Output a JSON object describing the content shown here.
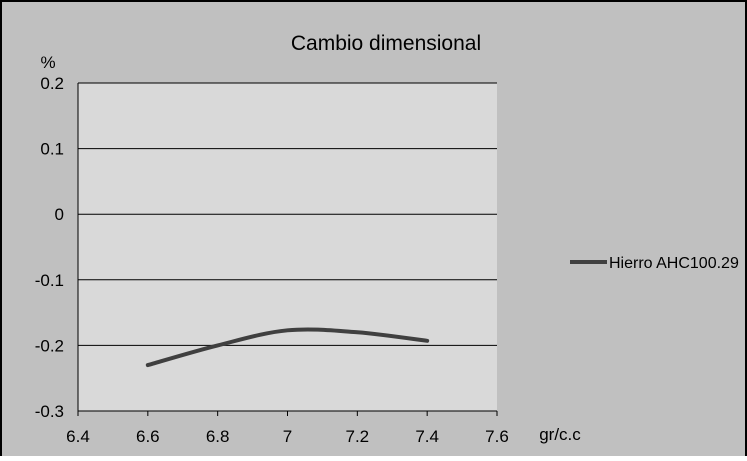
{
  "chart_data": {
    "type": "line",
    "title": "Cambio dimensional",
    "ylabel": "%",
    "xlabel": "gr/c.c",
    "xlim": [
      6.4,
      7.6
    ],
    "ylim": [
      -0.3,
      0.2
    ],
    "xticks": [
      "6.4",
      "6.6",
      "6.8",
      "7",
      "7.2",
      "7.4",
      "7.6"
    ],
    "yticks": [
      "0.2",
      "0.1",
      "0",
      "-0.1",
      "-0.2",
      "-0.3"
    ],
    "grid": true,
    "legend_position": "right",
    "series": [
      {
        "name": "Hierro AHC100.29",
        "color": "#404040",
        "x": [
          6.6,
          6.8,
          7.0,
          7.2,
          7.4
        ],
        "y": [
          -0.23,
          -0.2,
          -0.177,
          -0.18,
          -0.193
        ]
      }
    ],
    "colors": {
      "outer_background": "#c0c0c0",
      "plot_background": "#d9d9d9",
      "gridline": "#000000"
    }
  }
}
